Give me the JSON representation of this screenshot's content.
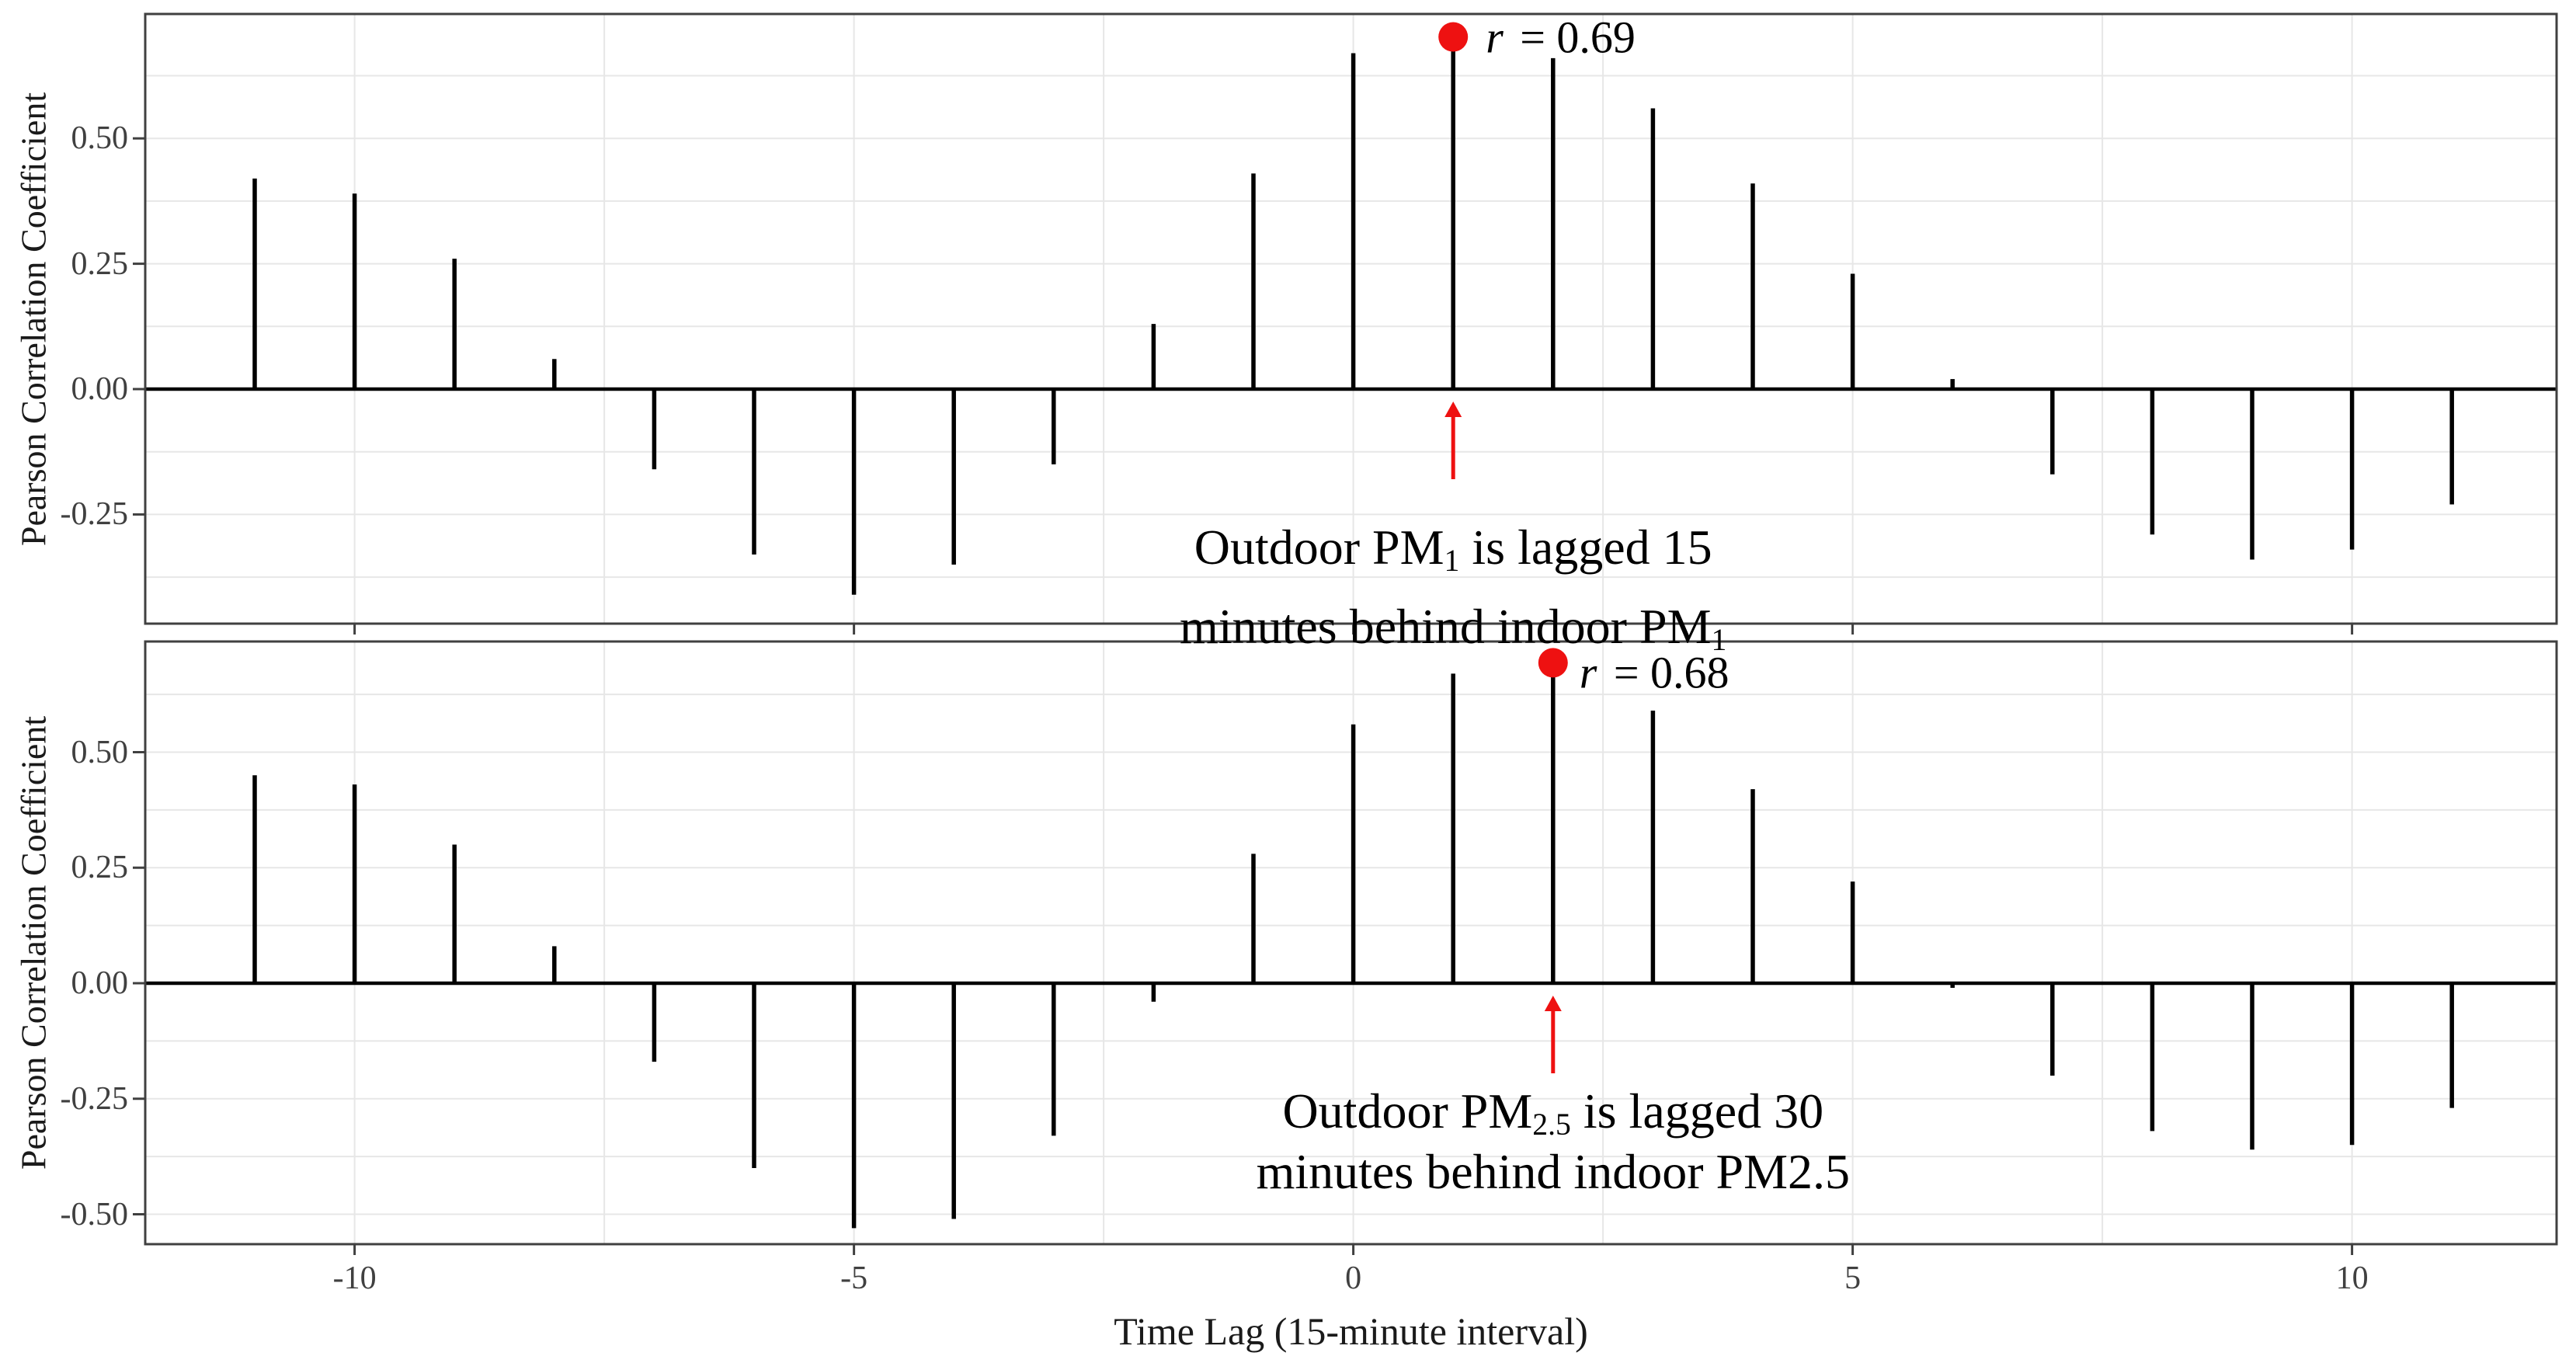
{
  "figure": {
    "axis_title_x": "Time Lag (15-minute interval)",
    "axis_title_y": "Pearson Correlation Coefficient",
    "background": "#ffffff",
    "colors": {
      "stem": "#000000",
      "zero_line": "#000000",
      "grid": "#e7e7e7",
      "panel_border": "#404040",
      "tick": "#404040",
      "tick_label": "#404040",
      "accent_red": "#ee1111",
      "text": "#000000"
    }
  },
  "chart_data": [
    {
      "type": "bar",
      "name": "cross-correlation-pm1",
      "title": "",
      "xlabel": "Time Lag (15-minute interval)",
      "ylabel": "Pearson Correlation Coefficient",
      "grid": "on",
      "legend": "none",
      "x": [
        -11,
        -10,
        -9,
        -8,
        -7,
        -6,
        -5,
        -4,
        -3,
        -2,
        -1,
        0,
        1,
        2,
        3,
        4,
        5,
        6,
        7,
        8,
        9,
        10,
        11
      ],
      "values": [
        0.42,
        0.39,
        0.26,
        0.06,
        -0.16,
        -0.33,
        -0.41,
        -0.35,
        -0.15,
        0.13,
        0.43,
        0.67,
        0.69,
        0.66,
        0.56,
        0.41,
        0.23,
        0.02,
        -0.17,
        -0.29,
        -0.34,
        -0.32,
        -0.23
      ],
      "ylim": [
        -0.47,
        0.75
      ],
      "xlim": [
        -12.1,
        12.05
      ],
      "ytick_values": [
        0.5,
        0.25,
        0.0,
        -0.25
      ],
      "yticks": [
        "0.50",
        "0.25",
        "0.00",
        "-0.25"
      ],
      "xtick_values": [
        -10,
        -5,
        0,
        5,
        10
      ],
      "xticks": [
        "-10",
        "-5",
        "0",
        "5",
        "10"
      ],
      "peak": {
        "lag": 1,
        "r": 0.69,
        "var": "r",
        "text": " = 0.69"
      },
      "annotation": {
        "line1": [
          {
            "t": "Outdoor PM"
          },
          {
            "t": "1",
            "sub": true
          },
          {
            "t": " is lagged 15"
          }
        ],
        "line2": [
          {
            "t": "minutes behind indoor PM"
          },
          {
            "t": "1",
            "sub": true
          }
        ]
      }
    },
    {
      "type": "bar",
      "name": "cross-correlation-pm25",
      "title": "",
      "xlabel": "Time Lag (15-minute interval)",
      "ylabel": "Pearson Correlation Coefficient",
      "grid": "on",
      "legend": "none",
      "x": [
        -11,
        -10,
        -9,
        -8,
        -7,
        -6,
        -5,
        -4,
        -3,
        -2,
        -1,
        0,
        1,
        2,
        3,
        4,
        5,
        6,
        7,
        8,
        9,
        10,
        11
      ],
      "values": [
        0.45,
        0.43,
        0.3,
        0.08,
        -0.17,
        -0.4,
        -0.53,
        -0.51,
        -0.33,
        -0.04,
        0.28,
        0.56,
        0.67,
        0.68,
        0.59,
        0.42,
        0.22,
        -0.01,
        -0.2,
        -0.32,
        -0.36,
        -0.35,
        -0.27
      ],
      "ylim": [
        -0.57,
        0.74
      ],
      "xlim": [
        -12.1,
        12.05
      ],
      "ytick_values": [
        0.5,
        0.25,
        0.0,
        -0.25,
        -0.5
      ],
      "yticks": [
        "0.50",
        "0.25",
        "0.00",
        "-0.25",
        "-0.50"
      ],
      "xtick_values": [
        -10,
        -5,
        0,
        5,
        10
      ],
      "xticks": [
        "-10",
        "-5",
        "0",
        "5",
        "10"
      ],
      "peak": {
        "lag": 2,
        "r": 0.68,
        "var": "r",
        "text": " = 0.68"
      },
      "annotation": {
        "line1": [
          {
            "t": "Outdoor PM"
          },
          {
            "t": "2.5",
            "sub": true
          },
          {
            "t": " is lagged 30"
          }
        ],
        "line2": [
          {
            "t": "minutes behind indoor PM2.5"
          }
        ]
      }
    }
  ]
}
